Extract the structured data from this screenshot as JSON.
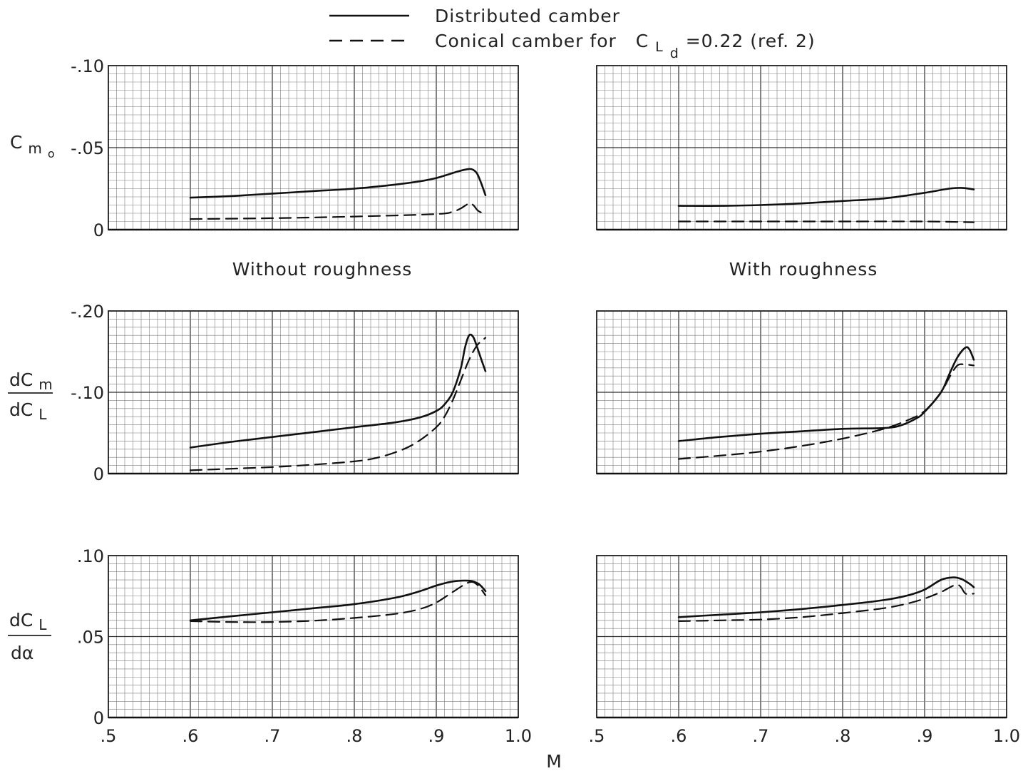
{
  "legend": {
    "solid_label": "Distributed camber",
    "dashed_label_prefix": "Conical camber for",
    "dashed_label_symbol": "C",
    "dashed_label_subscript": "L",
    "dashed_label_subsubscript": "d",
    "dashed_label_suffix": "=0.22 (ref. 2)"
  },
  "section_titles": {
    "left": "Without   roughness",
    "right": "With   roughness"
  },
  "xlabel": "M",
  "x_tick_labels": [
    ".5",
    ".6",
    ".7",
    ".8",
    ".9",
    "1.0"
  ],
  "row_labels": {
    "cm0": {
      "main": "C",
      "sub": "m",
      "subsub": "o"
    },
    "dcm": {
      "num": "dC",
      "num_sub": "m",
      "den": "dC",
      "den_sub": "L"
    },
    "dcl": {
      "num": "dC",
      "num_sub": "L",
      "den": "dα"
    }
  },
  "chart_data": [
    {
      "id": "cm0-without",
      "type": "line",
      "panel": "Without roughness",
      "x_ticks": [
        0.5,
        0.6,
        0.7,
        0.8,
        0.9,
        1.0
      ],
      "xlim": [
        0.5,
        1.0
      ],
      "ylim": [
        0,
        -0.1
      ],
      "y_ticks": [
        0,
        -0.05,
        -0.1
      ],
      "y_tick_labels": [
        "0",
        "-.05",
        "-.10"
      ],
      "series": [
        {
          "name": "Distributed camber",
          "style": "solid",
          "x": [
            0.6,
            0.65,
            0.7,
            0.75,
            0.8,
            0.85,
            0.88,
            0.9,
            0.92,
            0.93,
            0.94,
            0.945,
            0.95,
            0.955,
            0.96
          ],
          "y": [
            -0.0195,
            -0.0205,
            -0.022,
            -0.0235,
            -0.025,
            -0.0275,
            -0.0295,
            -0.0315,
            -0.0345,
            -0.036,
            -0.037,
            -0.0365,
            -0.034,
            -0.028,
            -0.021
          ]
        },
        {
          "name": "Conical camber for CLd=0.22 (ref. 2)",
          "style": "dashed",
          "x": [
            0.6,
            0.7,
            0.8,
            0.9,
            0.92,
            0.93,
            0.94,
            0.945,
            0.95,
            0.955,
            0.96
          ],
          "y": [
            -0.0065,
            -0.007,
            -0.008,
            -0.0095,
            -0.011,
            -0.013,
            -0.016,
            -0.015,
            -0.012,
            -0.0105,
            -0.011
          ]
        }
      ]
    },
    {
      "id": "cm0-with",
      "type": "line",
      "panel": "With roughness",
      "x_ticks": [
        0.5,
        0.6,
        0.7,
        0.8,
        0.9,
        1.0
      ],
      "xlim": [
        0.5,
        1.0
      ],
      "ylim": [
        0,
        -0.1
      ],
      "y_ticks": [
        0,
        -0.05,
        -0.1
      ],
      "series": [
        {
          "name": "Distributed camber",
          "style": "solid",
          "x": [
            0.6,
            0.65,
            0.7,
            0.75,
            0.8,
            0.85,
            0.9,
            0.93,
            0.945,
            0.96
          ],
          "y": [
            -0.0145,
            -0.0145,
            -0.015,
            -0.016,
            -0.0175,
            -0.019,
            -0.0225,
            -0.025,
            -0.0255,
            -0.0245
          ]
        },
        {
          "name": "Conical camber for CLd=0.22 (ref. 2)",
          "style": "dashed",
          "x": [
            0.6,
            0.7,
            0.8,
            0.9,
            0.96
          ],
          "y": [
            -0.005,
            -0.005,
            -0.005,
            -0.005,
            -0.0045
          ]
        }
      ]
    },
    {
      "id": "dcm-without",
      "type": "line",
      "panel": "Without roughness",
      "x_ticks": [
        0.5,
        0.6,
        0.7,
        0.8,
        0.9,
        1.0
      ],
      "xlim": [
        0.5,
        1.0
      ],
      "ylim": [
        0,
        -0.2
      ],
      "y_ticks": [
        0,
        -0.1,
        -0.2
      ],
      "y_tick_labels": [
        "0",
        "-.10",
        "-.20"
      ],
      "series": [
        {
          "name": "Distributed camber",
          "style": "solid",
          "x": [
            0.6,
            0.65,
            0.7,
            0.75,
            0.8,
            0.85,
            0.88,
            0.9,
            0.91,
            0.92,
            0.93,
            0.935,
            0.94,
            0.945,
            0.95,
            0.955,
            0.96
          ],
          "y": [
            -0.032,
            -0.039,
            -0.045,
            -0.051,
            -0.057,
            -0.063,
            -0.069,
            -0.077,
            -0.085,
            -0.1,
            -0.13,
            -0.155,
            -0.17,
            -0.168,
            -0.155,
            -0.14,
            -0.126
          ]
        },
        {
          "name": "Conical camber for CLd=0.22 (ref. 2)",
          "style": "dashed",
          "x": [
            0.6,
            0.65,
            0.7,
            0.75,
            0.8,
            0.83,
            0.86,
            0.88,
            0.9,
            0.91,
            0.92,
            0.93,
            0.94,
            0.95,
            0.96
          ],
          "y": [
            -0.004,
            -0.006,
            -0.008,
            -0.011,
            -0.015,
            -0.02,
            -0.03,
            -0.041,
            -0.057,
            -0.07,
            -0.09,
            -0.115,
            -0.14,
            -0.158,
            -0.167
          ]
        }
      ]
    },
    {
      "id": "dcm-with",
      "type": "line",
      "panel": "With roughness",
      "x_ticks": [
        0.5,
        0.6,
        0.7,
        0.8,
        0.9,
        1.0
      ],
      "xlim": [
        0.5,
        1.0
      ],
      "ylim": [
        0,
        -0.2
      ],
      "y_ticks": [
        0,
        -0.1,
        -0.2
      ],
      "series": [
        {
          "name": "Distributed camber",
          "style": "solid",
          "x": [
            0.6,
            0.65,
            0.7,
            0.75,
            0.8,
            0.85,
            0.87,
            0.89,
            0.9,
            0.92,
            0.93,
            0.94,
            0.95,
            0.955,
            0.96
          ],
          "y": [
            -0.04,
            -0.045,
            -0.049,
            -0.052,
            -0.055,
            -0.056,
            -0.059,
            -0.068,
            -0.076,
            -0.1,
            -0.122,
            -0.143,
            -0.155,
            -0.152,
            -0.14
          ]
        },
        {
          "name": "Conical camber for CLd=0.22 (ref. 2)",
          "style": "dashed",
          "x": [
            0.6,
            0.65,
            0.7,
            0.75,
            0.8,
            0.85,
            0.88,
            0.9,
            0.92,
            0.93,
            0.94,
            0.95,
            0.96
          ],
          "y": [
            -0.018,
            -0.022,
            -0.027,
            -0.034,
            -0.043,
            -0.055,
            -0.066,
            -0.077,
            -0.1,
            -0.118,
            -0.133,
            -0.134,
            -0.133
          ]
        }
      ]
    },
    {
      "id": "dcl-without",
      "type": "line",
      "panel": "Without roughness",
      "x_ticks": [
        0.5,
        0.6,
        0.7,
        0.8,
        0.9,
        1.0
      ],
      "xlim": [
        0.5,
        1.0
      ],
      "ylim": [
        0,
        0.1
      ],
      "y_ticks": [
        0,
        0.05,
        0.1
      ],
      "y_tick_labels": [
        "0",
        ".05",
        ".10"
      ],
      "series": [
        {
          "name": "Distributed camber",
          "style": "solid",
          "x": [
            0.6,
            0.65,
            0.7,
            0.75,
            0.8,
            0.85,
            0.88,
            0.9,
            0.92,
            0.94,
            0.95,
            0.955,
            0.96
          ],
          "y": [
            0.06,
            0.0625,
            0.065,
            0.0675,
            0.07,
            0.074,
            0.078,
            0.0815,
            0.084,
            0.0845,
            0.083,
            0.081,
            0.078
          ]
        },
        {
          "name": "Conical camber for CLd=0.22 (ref. 2)",
          "style": "dashed",
          "x": [
            0.6,
            0.65,
            0.7,
            0.75,
            0.8,
            0.85,
            0.88,
            0.9,
            0.92,
            0.94,
            0.95,
            0.96
          ],
          "y": [
            0.0595,
            0.059,
            0.059,
            0.0598,
            0.0615,
            0.064,
            0.067,
            0.071,
            0.0775,
            0.0835,
            0.082,
            0.0755
          ]
        }
      ]
    },
    {
      "id": "dcl-with",
      "type": "line",
      "panel": "With roughness",
      "x_ticks": [
        0.5,
        0.6,
        0.7,
        0.8,
        0.9,
        1.0
      ],
      "xlim": [
        0.5,
        1.0
      ],
      "ylim": [
        0,
        0.1
      ],
      "y_ticks": [
        0,
        0.05,
        0.1
      ],
      "series": [
        {
          "name": "Distributed camber",
          "style": "solid",
          "x": [
            0.6,
            0.65,
            0.7,
            0.75,
            0.8,
            0.85,
            0.88,
            0.9,
            0.92,
            0.935,
            0.945,
            0.955,
            0.96
          ],
          "y": [
            0.062,
            0.0635,
            0.065,
            0.067,
            0.0695,
            0.0725,
            0.0755,
            0.079,
            0.085,
            0.0865,
            0.0855,
            0.0825,
            0.0805
          ]
        },
        {
          "name": "Conical camber for CLd=0.22 (ref. 2)",
          "style": "dashed",
          "x": [
            0.6,
            0.65,
            0.7,
            0.75,
            0.8,
            0.85,
            0.88,
            0.9,
            0.92,
            0.94,
            0.95,
            0.96
          ],
          "y": [
            0.0595,
            0.06,
            0.0605,
            0.062,
            0.0645,
            0.0675,
            0.0705,
            0.0735,
            0.0775,
            0.082,
            0.0765,
            0.0765
          ]
        }
      ]
    }
  ]
}
